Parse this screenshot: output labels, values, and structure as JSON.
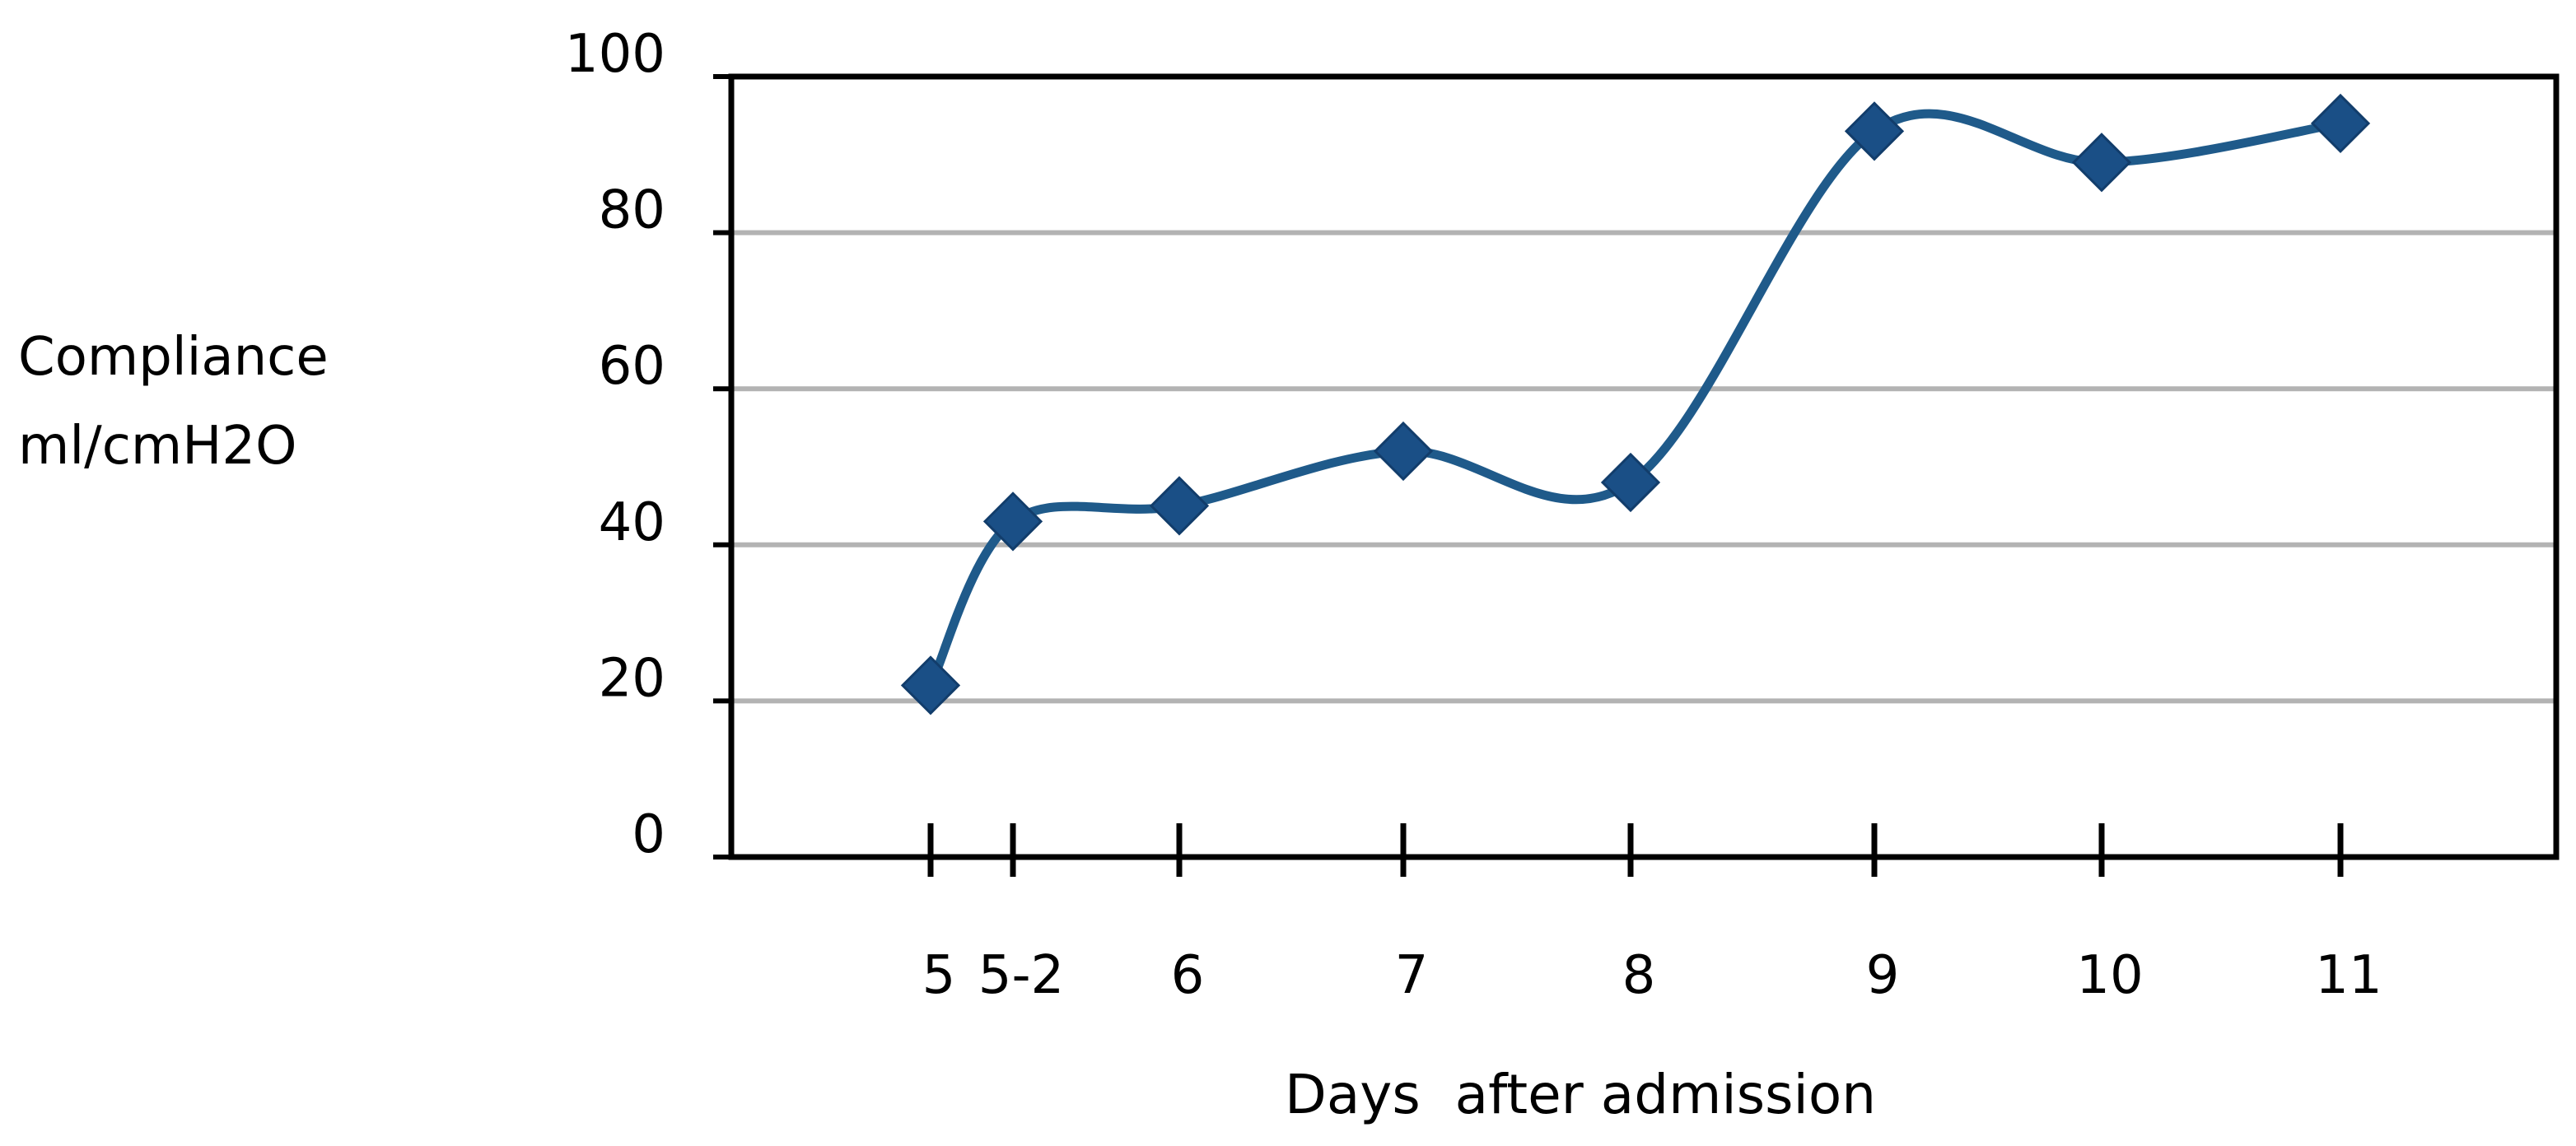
{
  "chart_data": {
    "type": "line",
    "title": "",
    "xlabel": "Days  after admission",
    "ylabel_lines": [
      "Compliance",
      "ml/cmH2O"
    ],
    "categories": [
      "5",
      "5-2",
      "6",
      "7",
      "8",
      "9",
      "10",
      "11"
    ],
    "series": [
      {
        "values": [
          22,
          43,
          45,
          52,
          48,
          93,
          89,
          94
        ]
      }
    ],
    "ylim": [
      0,
      100
    ],
    "yticks": [
      0,
      20,
      40,
      60,
      80,
      100
    ],
    "grid": true,
    "legend": "none",
    "colors": {
      "line": "#1f5a8a",
      "marker": "#1a4f86",
      "grid": "#b3b3b3",
      "axis": "#000000"
    }
  }
}
